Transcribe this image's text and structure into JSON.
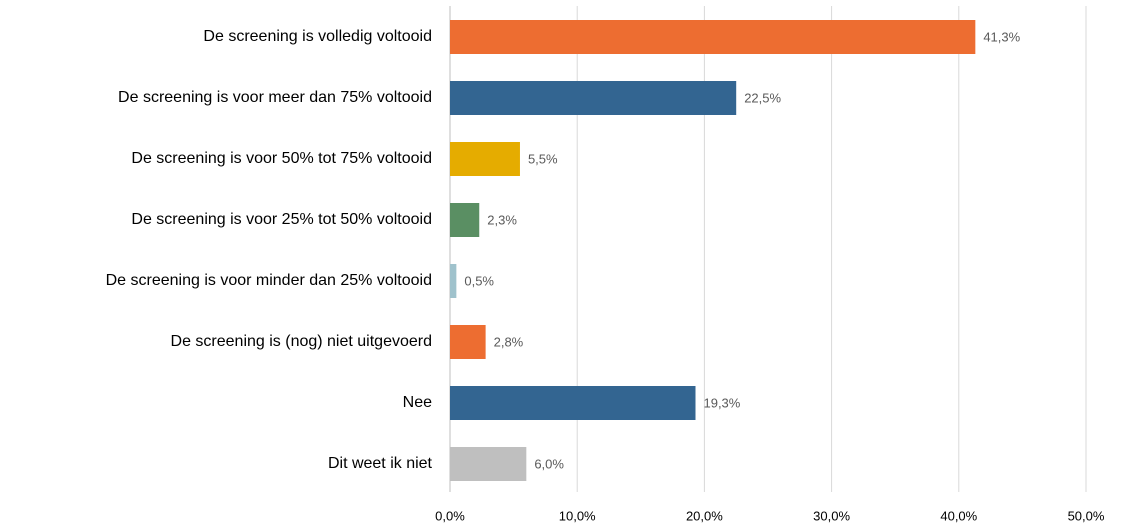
{
  "chart_data": {
    "type": "bar",
    "orientation": "horizontal",
    "categories": [
      "De screening is volledig voltooid",
      "De screening is voor meer dan 75% voltooid",
      "De screening is voor 50% tot 75% voltooid",
      "De screening is voor 25% tot 50% voltooid",
      "De screening is voor minder dan 25% voltooid",
      "De screening is (nog) niet uitgevoerd",
      "Nee",
      "Dit weet ik niet"
    ],
    "values": [
      41.3,
      22.5,
      5.5,
      2.3,
      0.5,
      2.8,
      19.3,
      6.0
    ],
    "value_labels": [
      "41,3%",
      "22,5%",
      "5,5%",
      "2,3%",
      "0,5%",
      "2,8%",
      "19,3%",
      "6,0%"
    ],
    "colors": [
      "#ED6D31",
      "#336591",
      "#E5AC00",
      "#5A8F63",
      "#9FC2CC",
      "#ED6D31",
      "#336591",
      "#BFBFBF"
    ],
    "xlim": [
      0,
      50
    ],
    "xticks": [
      {
        "value": 0,
        "label": "0,0%"
      },
      {
        "value": 10,
        "label": "10,0%"
      },
      {
        "value": 20,
        "label": "20,0%"
      },
      {
        "value": 30,
        "label": "30,0%"
      },
      {
        "value": 40,
        "label": "40,0%"
      },
      {
        "value": 50,
        "label": "50,0%"
      }
    ],
    "grid": true
  }
}
